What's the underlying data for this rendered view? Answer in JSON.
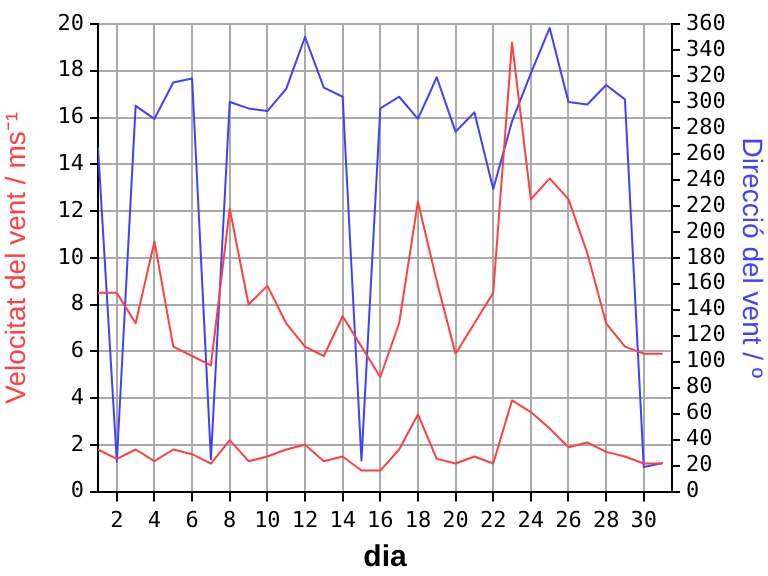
{
  "chart_data": {
    "type": "line",
    "xlabel": "dia",
    "ylabel": "Velocitat del vent / ms⁻¹",
    "y2label": "Direcció del vent / º",
    "x": [
      1,
      2,
      3,
      4,
      5,
      6,
      7,
      8,
      9,
      10,
      11,
      12,
      13,
      14,
      15,
      16,
      17,
      18,
      19,
      20,
      21,
      22,
      23,
      24,
      25,
      26,
      27,
      28,
      29,
      30,
      31
    ],
    "xlim": [
      1,
      31.5
    ],
    "xticks": [
      2,
      4,
      6,
      8,
      10,
      12,
      14,
      16,
      18,
      20,
      22,
      24,
      26,
      28,
      30
    ],
    "ylim": [
      0,
      20
    ],
    "yticks": [
      0,
      2,
      4,
      6,
      8,
      10,
      12,
      14,
      16,
      18,
      20
    ],
    "y2lim": [
      0,
      360
    ],
    "y2ticks": [
      0,
      20,
      40,
      60,
      80,
      100,
      120,
      140,
      160,
      180,
      200,
      220,
      240,
      260,
      280,
      300,
      320,
      340,
      360
    ],
    "grid": true,
    "marker": "none",
    "line_style": "solid",
    "series": [
      {
        "color": "#ff4040",
        "values": [
          8.5,
          8.5,
          7.2,
          10.7,
          6.2,
          5.8,
          5.4,
          12.1,
          8.0,
          8.8,
          7.2,
          6.2,
          5.8,
          7.5,
          6.2,
          4.9,
          7.2,
          12.4,
          9.0,
          5.9,
          7.2,
          8.5,
          19.2,
          12.5,
          13.4,
          12.5,
          10.2,
          7.2,
          6.2,
          5.9,
          5.9
        ]
      },
      {
        "color": "#ff4040",
        "values": [
          1.8,
          1.4,
          1.8,
          1.3,
          1.8,
          1.6,
          1.2,
          2.2,
          1.3,
          1.5,
          1.8,
          2.0,
          1.3,
          1.5,
          0.9,
          0.9,
          1.8,
          3.3,
          1.4,
          1.2,
          1.5,
          1.2,
          3.9,
          3.4,
          2.7,
          1.9,
          2.1,
          1.7,
          1.5,
          1.2,
          1.2
        ]
      },
      {
        "color": "#4040ff",
        "axis": "y2",
        "values": [
          265,
          23,
          297,
          287,
          315,
          318,
          25,
          300,
          295,
          293,
          310,
          350,
          311,
          304,
          24,
          295,
          304,
          287,
          319,
          277,
          292,
          233,
          285,
          322,
          357,
          300,
          298,
          313,
          302,
          19,
          22
        ]
      }
    ]
  }
}
